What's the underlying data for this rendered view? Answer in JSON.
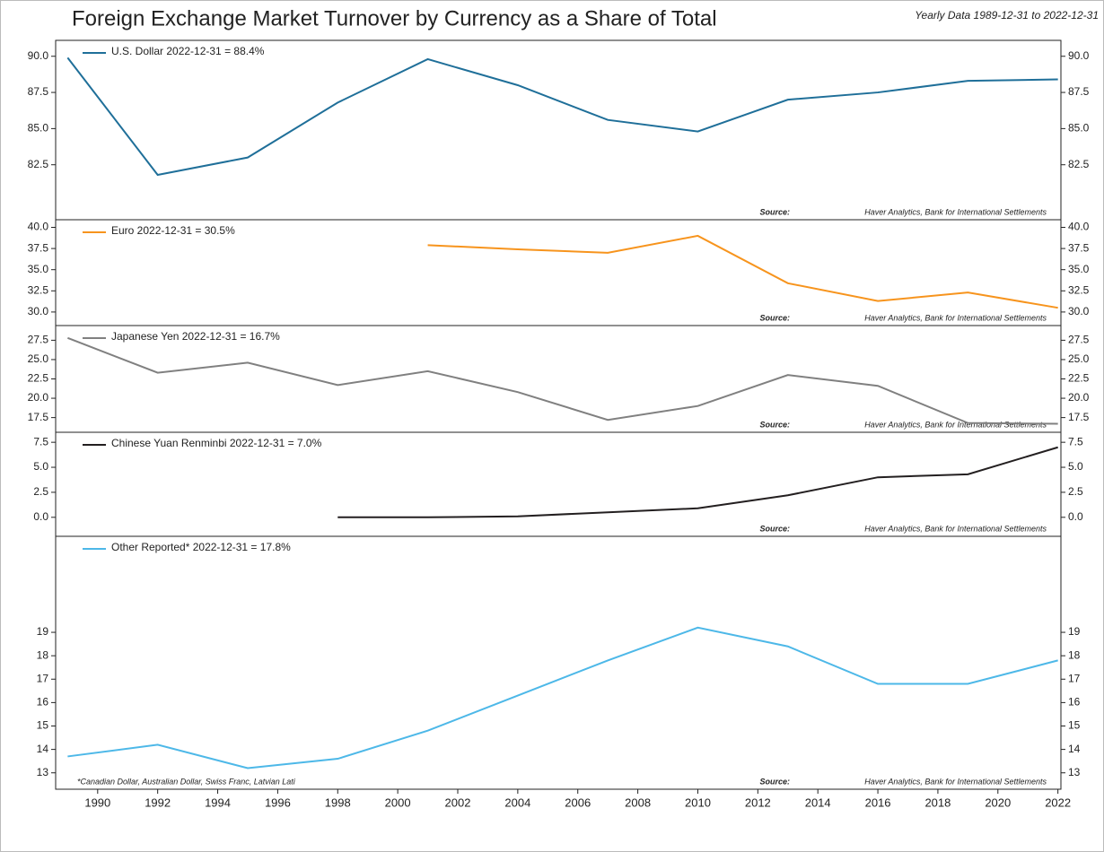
{
  "title": "Foreign Exchange Market Turnover by Currency as a Share of Total",
  "subtitle": "Yearly Data 1989-12-31 to 2022-12-31",
  "footnote": "*Canadian Dollar, Australian Dollar, Swiss Franc, Latvian Lati",
  "xlim": [
    1988.6,
    2022.1
  ],
  "xticks": [
    1990,
    1992,
    1994,
    1996,
    1998,
    2000,
    2002,
    2004,
    2006,
    2008,
    2010,
    2012,
    2014,
    2016,
    2018,
    2020,
    2022
  ],
  "chart_data": [
    {
      "type": "line",
      "x": [
        1989,
        1992,
        1995,
        1998,
        2001,
        2004,
        2007,
        2010,
        2013,
        2016,
        2019,
        2022
      ],
      "series": [
        {
          "name": "U.S. Dollar 2022-12-31 = 88.4%",
          "color": "#1f6f99",
          "values": [
            89.9,
            81.8,
            83.0,
            86.8,
            89.8,
            88.0,
            85.6,
            84.8,
            87.0,
            87.5,
            88.3,
            88.4
          ]
        }
      ],
      "ylim": [
        78.7,
        91.1
      ],
      "yticks": [
        {
          "value": 82.5,
          "label": "82.5"
        },
        {
          "value": 85,
          "label": "85.0"
        },
        {
          "value": 87.5,
          "label": "87.5"
        },
        {
          "value": 90,
          "label": "90.0"
        }
      ],
      "source": {
        "label": "Source:",
        "text": "Haver Analytics, Bank for International Settlements"
      }
    },
    {
      "type": "line",
      "x": [
        2001,
        2004,
        2007,
        2010,
        2013,
        2016,
        2019,
        2022
      ],
      "series": [
        {
          "name": "Euro 2022-12-31 = 30.5%",
          "color": "#f7941d",
          "values": [
            37.9,
            37.4,
            37.0,
            39.0,
            33.4,
            31.3,
            32.3,
            30.5
          ]
        }
      ],
      "ylim": [
        28.4,
        40.9
      ],
      "yticks": [
        {
          "value": 30,
          "label": "30.0"
        },
        32.5,
        {
          "value": 35,
          "label": "35.0"
        },
        37.5,
        {
          "value": 40,
          "label": "40.0"
        }
      ],
      "source": {
        "label": "Source:",
        "text": "Haver Analytics, Bank for International Settlements"
      }
    },
    {
      "type": "line",
      "x": [
        1989,
        1992,
        1995,
        1998,
        2001,
        2004,
        2007,
        2010,
        2013,
        2016,
        2019,
        2022
      ],
      "series": [
        {
          "name": "Japanese Yen 2022-12-31 = 16.7%",
          "color": "#808080",
          "values": [
            27.8,
            23.3,
            24.6,
            21.7,
            23.5,
            20.8,
            17.2,
            19.0,
            23.0,
            21.6,
            16.8,
            16.7
          ]
        }
      ],
      "ylim": [
        15.6,
        29.4
      ],
      "yticks": [
        17.5,
        {
          "value": 20,
          "label": "20.0"
        },
        22.5,
        {
          "value": 25,
          "label": "25.0"
        },
        27.5
      ],
      "source": {
        "label": "Source:",
        "text": "Haver Analytics, Bank for International Settlements"
      }
    },
    {
      "type": "line",
      "x": [
        1998,
        2001,
        2004,
        2007,
        2010,
        2013,
        2016,
        2019,
        2022
      ],
      "series": [
        {
          "name": "Chinese Yuan Renminbi 2022-12-31 = 7.0%",
          "color": "#231f20",
          "values": [
            0.0,
            0.0,
            0.1,
            0.5,
            0.9,
            2.2,
            4.0,
            4.3,
            7.0
          ]
        }
      ],
      "ylim": [
        -1.9,
        8.5
      ],
      "yticks": [
        {
          "value": 0,
          "label": "0.0"
        },
        2.5,
        {
          "value": 5,
          "label": "5.0"
        },
        7.5
      ],
      "source": {
        "label": "Source:",
        "text": "Haver Analytics, Bank for International Settlements"
      }
    },
    {
      "type": "line",
      "x": [
        1989,
        1992,
        1995,
        1998,
        2001,
        2004,
        2007,
        2010,
        2013,
        2016,
        2019,
        2022
      ],
      "series": [
        {
          "name": "Other Reported* 2022-12-31 = 17.8%",
          "color": "#4db8e8",
          "values": [
            13.7,
            14.2,
            13.2,
            13.6,
            14.8,
            16.3,
            17.8,
            19.2,
            18.4,
            16.8,
            16.8,
            17.8
          ]
        }
      ],
      "ylim": [
        12.3,
        23.1
      ],
      "yticks": [
        13,
        14,
        15,
        16,
        17,
        18,
        19
      ],
      "source": {
        "label": "Source:",
        "text": "Haver Analytics, Bank for International Settlements"
      }
    }
  ]
}
